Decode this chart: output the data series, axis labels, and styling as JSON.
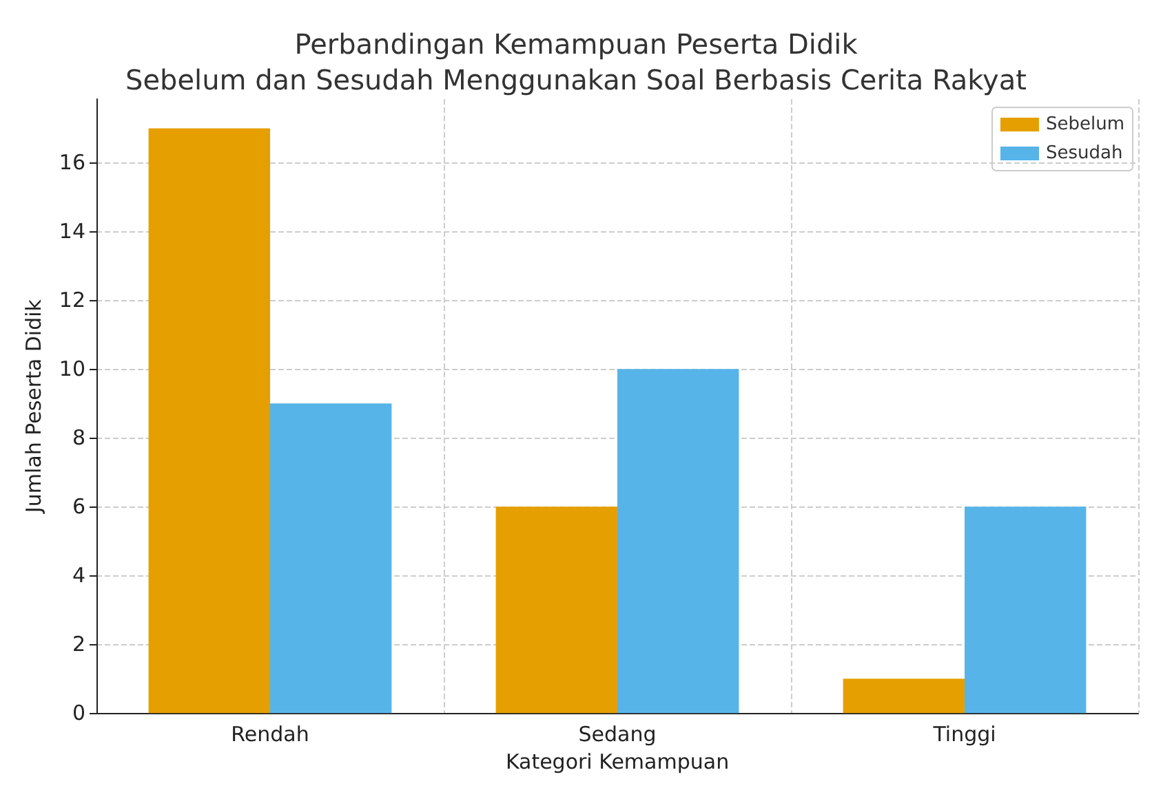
{
  "chart_data": {
    "type": "bar",
    "title": "Perbandingan Kemampuan Peserta Didik\nSebelum dan Sesudah Menggunakan Soal Berbasis Cerita Rakyat",
    "xlabel": "Kategori Kemampuan",
    "ylabel": "Jumlah Peserta Didik",
    "categories": [
      "Rendah",
      "Sedang",
      "Tinggi"
    ],
    "series": [
      {
        "name": "Sebelum",
        "color": "#e69f00",
        "values": [
          17,
          6,
          1
        ]
      },
      {
        "name": "Sesudah",
        "color": "#56b4e9",
        "values": [
          9,
          10,
          6
        ]
      }
    ],
    "ylim": [
      0,
      17.85
    ],
    "yticks": [
      0,
      2,
      4,
      6,
      8,
      10,
      12,
      14,
      16
    ],
    "grid": true,
    "legend": "top right"
  }
}
